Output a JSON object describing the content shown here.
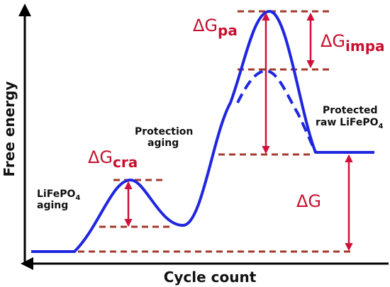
{
  "diagram": {
    "y_axis_label": "Free energy",
    "x_axis_label": "Cycle count",
    "labels": {
      "lifepo4_aging": {
        "base": "LiFePO",
        "sub": "4",
        "tail": "aging"
      },
      "protection_aging": {
        "line1": "Protection",
        "line2": "aging"
      },
      "protected_raw": {
        "line1": "Protected",
        "base": "raw LiFePO",
        "sub": "4"
      }
    },
    "delta_labels": {
      "cra": {
        "symbol": "ΔG",
        "sub": "cra"
      },
      "pa": {
        "symbol": "ΔG",
        "sub": "pa"
      },
      "impa": {
        "symbol": "ΔG",
        "sub": "impa"
      },
      "g": {
        "symbol": "ΔG",
        "sub": ""
      }
    },
    "colors": {
      "curve": "#1f26e0",
      "dashed_level": "#a33a2c",
      "arrow": "#d0103a",
      "delta_text": "#c8102e",
      "axis": "#000000"
    }
  }
}
